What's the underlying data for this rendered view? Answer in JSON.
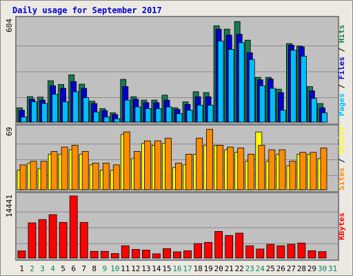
{
  "chart_data": {
    "type": "bar",
    "title": "Daily usage for September 2017",
    "categories": [
      "1",
      "2",
      "3",
      "4",
      "5",
      "6",
      "7",
      "8",
      "9",
      "10",
      "11",
      "12",
      "13",
      "14",
      "15",
      "16",
      "17",
      "18",
      "19",
      "20",
      "21",
      "22",
      "23",
      "24",
      "25",
      "26",
      "27",
      "28",
      "29",
      "30",
      "31"
    ],
    "weekend_days": [
      "2",
      "3",
      "4",
      "9",
      "10",
      "16",
      "17",
      "23",
      "24",
      "30",
      "31"
    ],
    "panels": [
      {
        "id": "top",
        "ymax_label": "604",
        "ymax": 604,
        "legend": [
          "Pages",
          "Files",
          "Hits"
        ],
        "legend_colors": [
          "#00bfff",
          "#0000cc",
          "#1a7a50"
        ],
        "series": [
          {
            "name": "Hits",
            "color": "#1a7a50",
            "values": [
              85,
              151,
              148,
              245,
              223,
              280,
              225,
              124,
              80,
              55,
              253,
              150,
              130,
              130,
              160,
              85,
              120,
              180,
              175,
              570,
              550,
              595,
              485,
              265,
              265,
              195,
              465,
              450,
              210,
              110,
              null
            ]
          },
          {
            "name": "Files",
            "color": "#0000cc",
            "values": [
              70,
              135,
              130,
              215,
              200,
              240,
              200,
              110,
              68,
              45,
              210,
              135,
              115,
              115,
              130,
              75,
              105,
              150,
              150,
              550,
              515,
              520,
              410,
              250,
              255,
              175,
              455,
              445,
              185,
              85,
              null
            ]
          },
          {
            "name": "Pages",
            "color": "#00bfff",
            "values": [
              30,
              120,
              110,
              165,
              120,
              180,
              145,
              60,
              30,
              20,
              130,
              90,
              80,
              80,
              90,
              50,
              70,
              100,
              100,
              480,
              430,
              470,
              370,
              215,
              200,
              70,
              425,
              390,
              140,
              55,
              null
            ]
          }
        ]
      },
      {
        "id": "middle",
        "ymax_label": "69",
        "ymax": 69,
        "legend": [
          "Sites",
          "Visits"
        ],
        "legend_colors": [
          "#ff8c00",
          "#ffff00"
        ],
        "series": [
          {
            "name": "Visits",
            "color": "#ffff00",
            "values": [
              22,
              30,
              24,
              40,
              40,
              45,
              40,
              28,
              22,
              22,
              62,
              35,
              52,
              50,
              52,
              25,
              28,
              40,
              50,
              50,
              45,
              42,
              32,
              65,
              32,
              40,
              27,
              40,
              40,
              35,
              null
            ]
          },
          {
            "name": "Sites",
            "color": "#ff8c00",
            "values": [
              28,
              32,
              32,
              43,
              48,
              50,
              43,
              30,
              30,
              28,
              65,
              43,
              55,
              55,
              58,
              30,
              40,
              58,
              68,
              50,
              48,
              47,
              40,
              50,
              45,
              45,
              32,
              42,
              42,
              47,
              null
            ]
          }
        ]
      },
      {
        "id": "bottom",
        "ymax_label": "14441",
        "ymax": 14441,
        "legend": [
          "KBytes"
        ],
        "legend_colors": [
          "#ff0000"
        ],
        "series": [
          {
            "name": "KBytes",
            "color": "#ff0000",
            "values": [
              1650,
              8200,
              8950,
              10100,
              8300,
              14441,
              8300,
              1550,
              1550,
              1050,
              2850,
              2000,
              1850,
              1000,
              2200,
              1450,
              1700,
              3350,
              3650,
              6200,
              5250,
              5800,
              2850,
              2100,
              3200,
              2850,
              3200,
              3500,
              1700,
              1500,
              null
            ]
          }
        ]
      }
    ]
  },
  "colors": {
    "plot_bg": "#c0c0c0",
    "outer_bg": "#ece9e2",
    "title_color": "#0000cc",
    "weekday_label": "#000000",
    "weekend_label": "#00875a"
  }
}
